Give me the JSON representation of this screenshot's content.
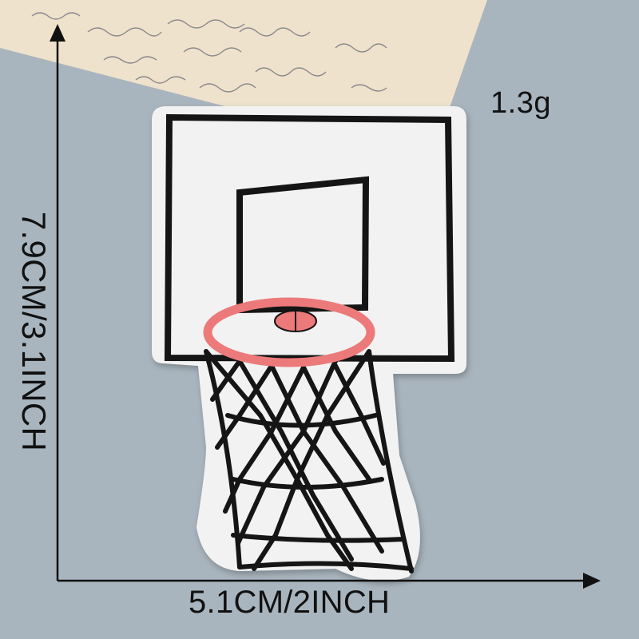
{
  "product": {
    "name": "basketball hoop embroidered patch",
    "colors": {
      "felt": "#f2f2f2",
      "stitch": "#151515",
      "rim": "#ec7a7a",
      "background": "#a9b5be",
      "card": "#eee2cc"
    }
  },
  "dimensions": {
    "weight": "1.3g",
    "width": "5.1CM/2INCH",
    "height": "7.9CM/3.1INCH"
  },
  "icons": {
    "up_arrow": "arrow-up-icon",
    "right_arrow": "arrow-right-icon"
  }
}
